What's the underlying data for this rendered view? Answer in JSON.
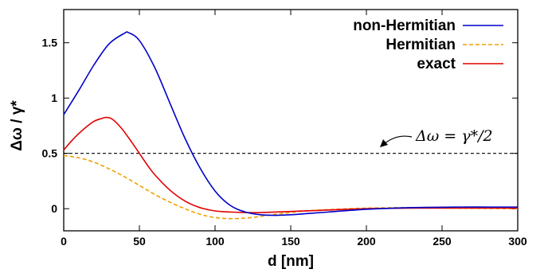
{
  "chart_data": {
    "type": "line",
    "xlabel": "d [nm]",
    "ylabel": "Δω / γ*",
    "xlim": [
      0,
      300
    ],
    "ylim": [
      -0.2,
      1.8
    ],
    "xticks": [
      "0",
      "50",
      "100",
      "150",
      "200",
      "250",
      "300"
    ],
    "yticks": [
      "0",
      "0.5",
      "1",
      "1.5"
    ],
    "grid": false,
    "legend_position": "top-right",
    "reference_line": {
      "y": 0.5,
      "style": "dashed",
      "color": "#000000"
    },
    "annotation": "Δω = γ*/2",
    "series": [
      {
        "name": "non-Hermitian",
        "color": "#0000cc",
        "style": "solid",
        "x": [
          0,
          10,
          20,
          30,
          40,
          43,
          50,
          60,
          70,
          80,
          90,
          100,
          110,
          120,
          130,
          140,
          150,
          160,
          175,
          200,
          230,
          260,
          280,
          300
        ],
        "y": [
          0.85,
          1.07,
          1.3,
          1.49,
          1.585,
          1.59,
          1.52,
          1.28,
          0.96,
          0.64,
          0.37,
          0.16,
          0.03,
          -0.03,
          -0.055,
          -0.06,
          -0.055,
          -0.045,
          -0.03,
          -0.005,
          0.01,
          0.015,
          0.015,
          0.015
        ]
      },
      {
        "name": "Hermitian",
        "color": "#f0a000",
        "style": "dashed",
        "x": [
          0,
          10,
          20,
          30,
          40,
          50,
          60,
          70,
          80,
          90,
          100,
          110,
          120,
          130,
          140,
          150,
          160,
          180,
          200,
          230,
          260,
          300
        ],
        "y": [
          0.48,
          0.46,
          0.42,
          0.36,
          0.29,
          0.21,
          0.13,
          0.06,
          0.0,
          -0.05,
          -0.08,
          -0.09,
          -0.085,
          -0.07,
          -0.05,
          -0.035,
          -0.02,
          -0.005,
          0.005,
          0.01,
          0.005,
          0.0
        ]
      },
      {
        "name": "exact",
        "color": "#e00000",
        "style": "solid",
        "x": [
          0,
          5,
          10,
          15,
          20,
          25,
          28,
          32,
          38,
          45,
          50,
          55,
          60,
          70,
          80,
          90,
          100,
          110,
          120,
          130,
          150,
          170,
          200,
          230,
          260,
          300
        ],
        "y": [
          0.53,
          0.61,
          0.68,
          0.74,
          0.79,
          0.815,
          0.825,
          0.81,
          0.73,
          0.6,
          0.5,
          0.4,
          0.31,
          0.17,
          0.07,
          0.01,
          -0.02,
          -0.03,
          -0.035,
          -0.035,
          -0.025,
          -0.015,
          0.0,
          0.005,
          0.005,
          0.005
        ]
      }
    ]
  }
}
